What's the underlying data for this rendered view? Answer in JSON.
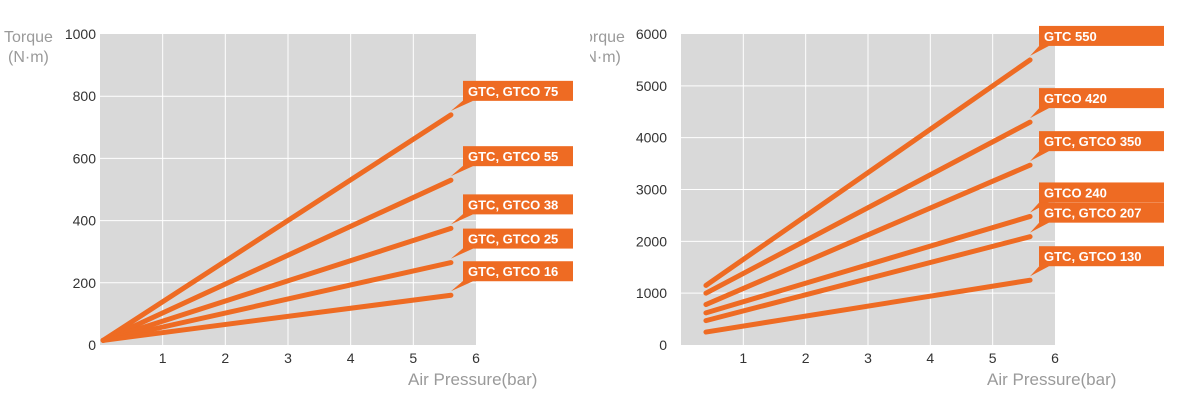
{
  "colors": {
    "plot_bg": "#d9d9d9",
    "grid": "#ffffff",
    "series": "#ee6b23",
    "axis_text": "#333333",
    "label_text": "#9a9a9a"
  },
  "chart_data": [
    {
      "type": "line",
      "ylabel_line1": "Torque",
      "ylabel_line2": "(N·m)",
      "xlabel": "Air Pressure(bar)",
      "xlim": [
        0,
        6
      ],
      "ylim": [
        0,
        1000
      ],
      "x_ticks": [
        "1",
        "2",
        "3",
        "4",
        "5",
        "6"
      ],
      "y_ticks": [
        "0",
        "200",
        "400",
        "600",
        "800",
        "1000"
      ],
      "grid": true,
      "series": [
        {
          "name": "GTC, GTCO 75",
          "x": [
            0.05,
            5.6
          ],
          "y": [
            15,
            740
          ]
        },
        {
          "name": "GTC, GTCO 55",
          "x": [
            0.05,
            5.6
          ],
          "y": [
            15,
            530
          ]
        },
        {
          "name": "GTC, GTCO 38",
          "x": [
            0.05,
            5.6
          ],
          "y": [
            15,
            375
          ]
        },
        {
          "name": "GTC, GTCO 25",
          "x": [
            0.05,
            5.6
          ],
          "y": [
            15,
            265
          ]
        },
        {
          "name": "GTC, GTCO 16",
          "x": [
            0.05,
            5.6
          ],
          "y": [
            15,
            160
          ]
        }
      ]
    },
    {
      "type": "line",
      "ylabel_line1": "Torque",
      "ylabel_line2": "(N·m)",
      "xlabel": "Air Pressure(bar)",
      "xlim": [
        0,
        6
      ],
      "ylim": [
        0,
        6000
      ],
      "x_ticks": [
        "1",
        "2",
        "3",
        "4",
        "5",
        "6"
      ],
      "y_ticks": [
        "0",
        "1000",
        "2000",
        "3000",
        "4000",
        "5000",
        "6000"
      ],
      "grid": true,
      "series": [
        {
          "name": "GTC 550",
          "x": [
            0.4,
            5.6
          ],
          "y": [
            1150,
            5500
          ]
        },
        {
          "name": "GTCO 420",
          "x": [
            0.4,
            5.6
          ],
          "y": [
            1000,
            4300
          ]
        },
        {
          "name": "GTC, GTCO 350",
          "x": [
            0.4,
            5.6
          ],
          "y": [
            780,
            3470
          ]
        },
        {
          "name": "GTCO 240",
          "x": [
            0.4,
            5.6
          ],
          "y": [
            620,
            2480
          ]
        },
        {
          "name": "GTC, GTCO 207",
          "x": [
            0.4,
            5.6
          ],
          "y": [
            470,
            2090
          ]
        },
        {
          "name": "GTC, GTCO 130",
          "x": [
            0.4,
            5.6
          ],
          "y": [
            250,
            1250
          ]
        }
      ]
    }
  ]
}
